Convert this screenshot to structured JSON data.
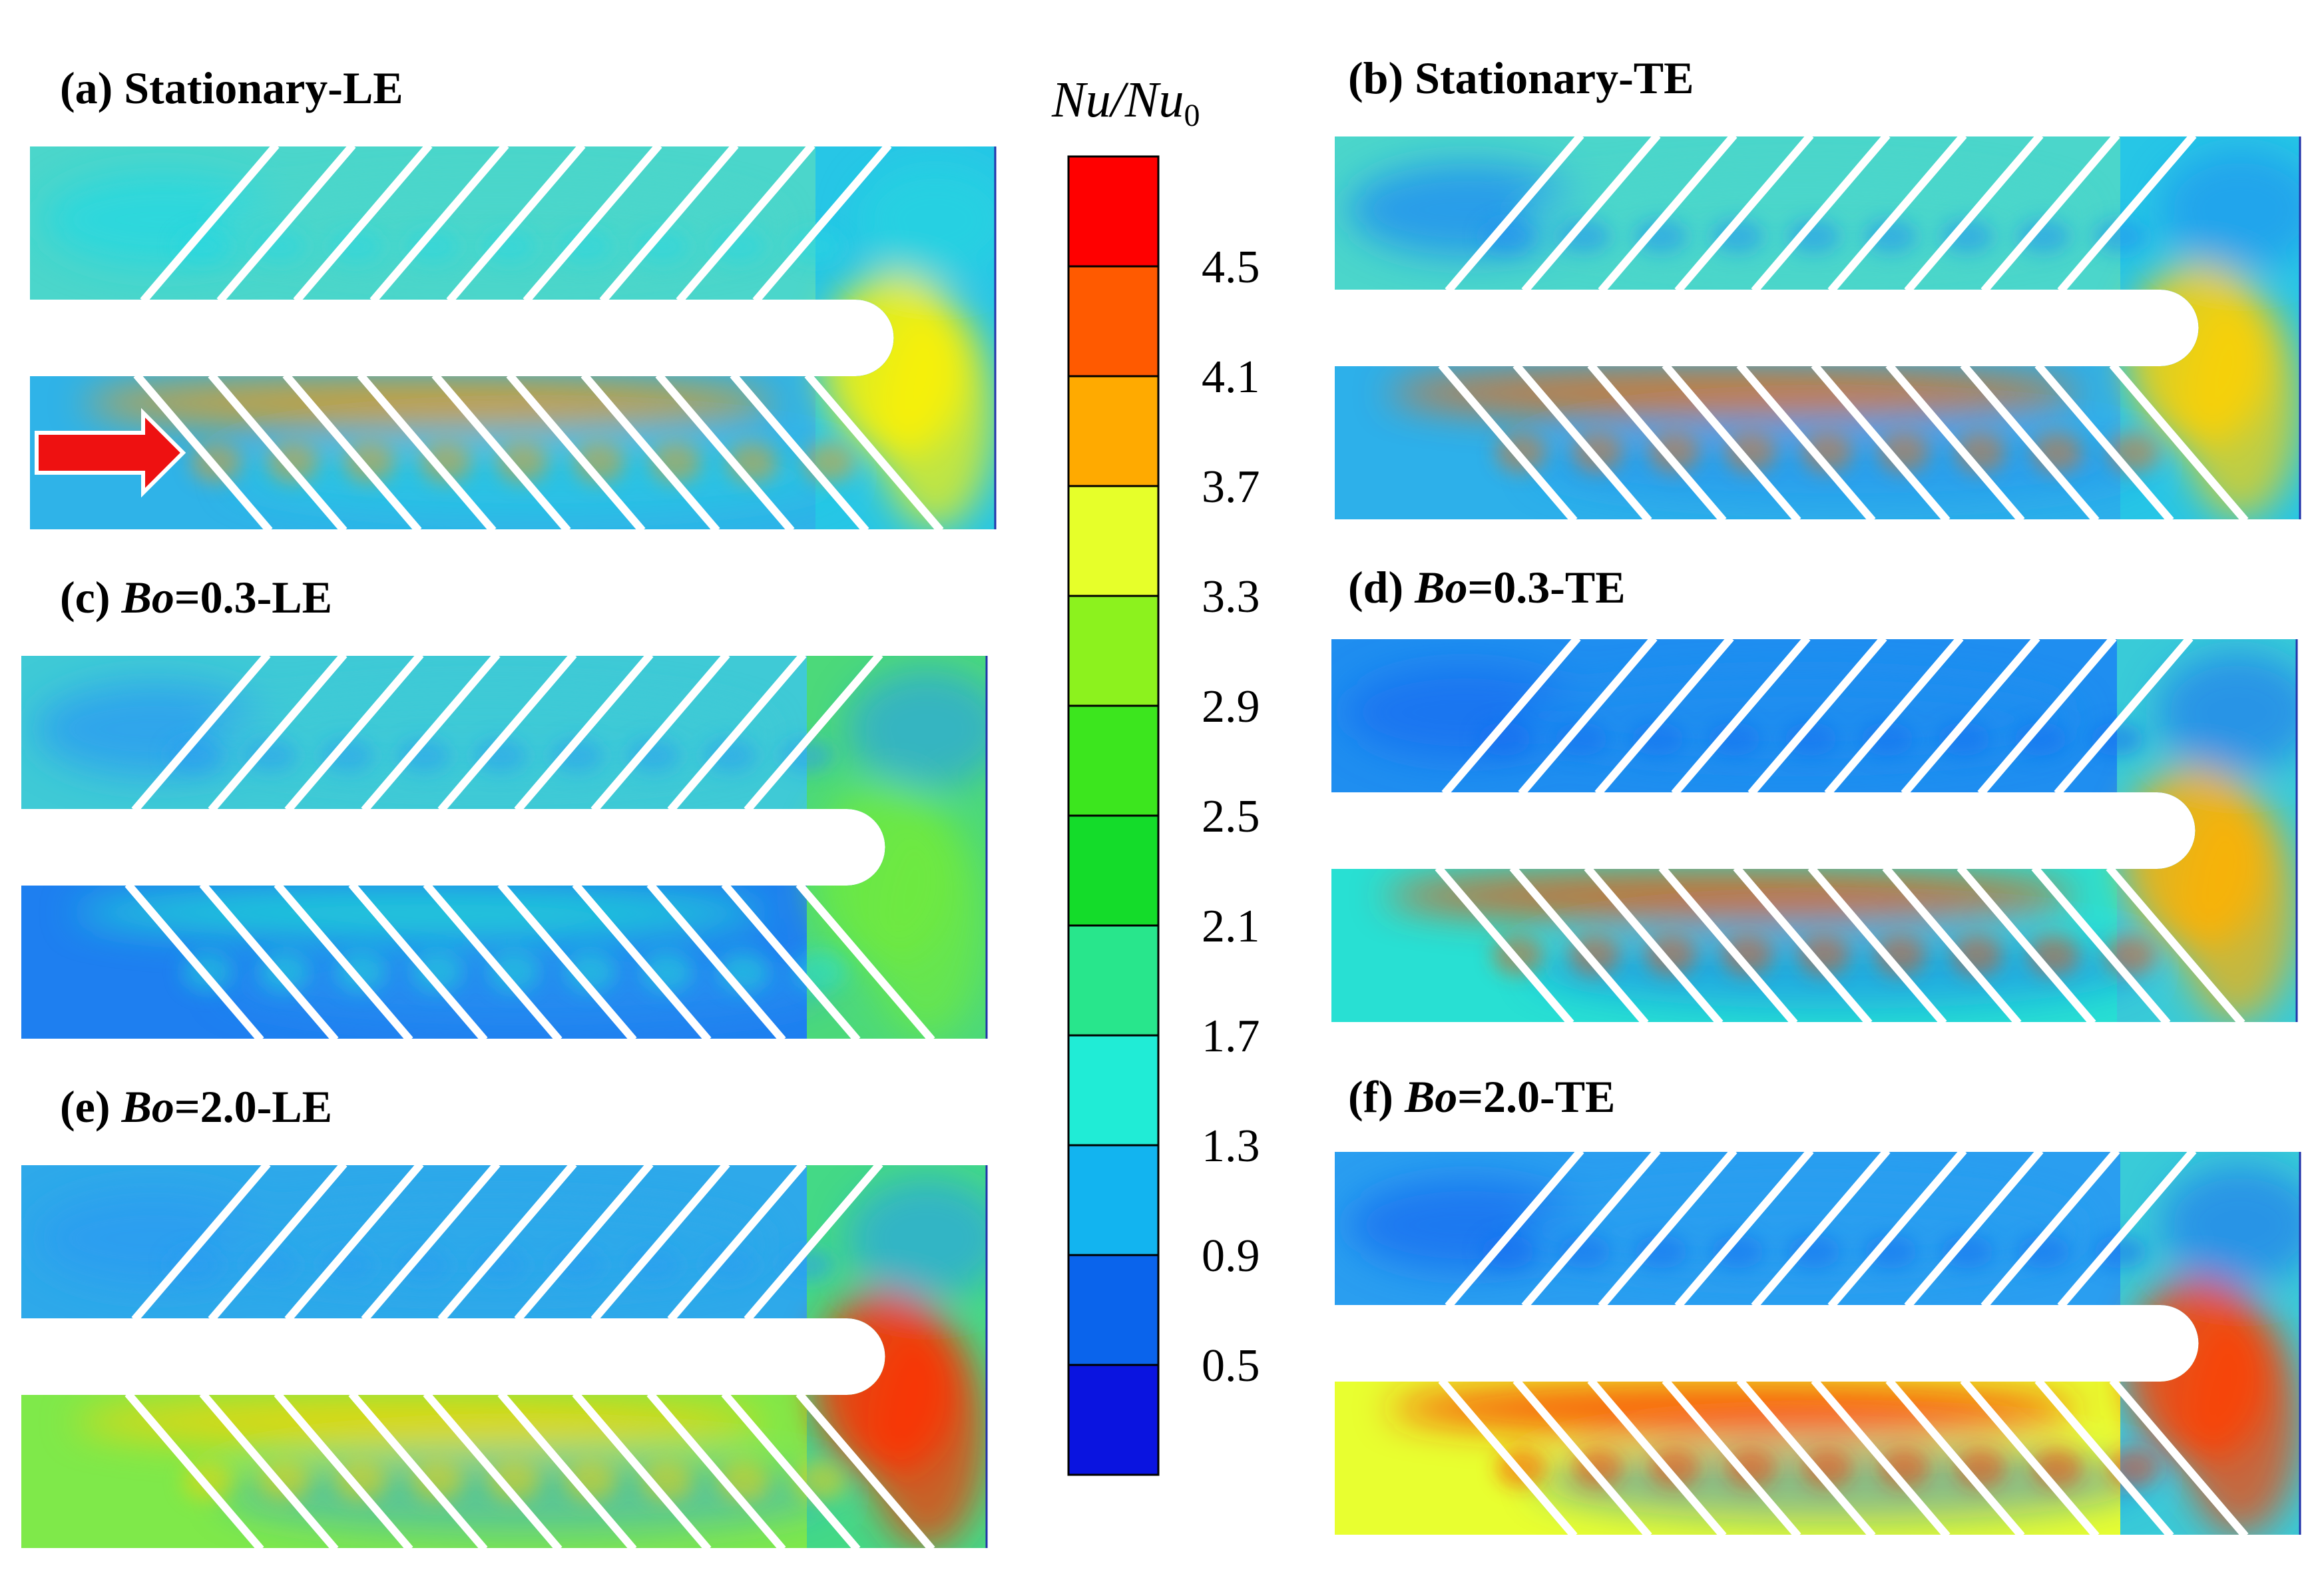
{
  "figure": {
    "colorbar": {
      "title_base": "Nu/Nu",
      "title_sub": "0",
      "ticks": [
        "4.5",
        "4.1",
        "3.7",
        "3.3",
        "2.9",
        "2.5",
        "2.1",
        "1.7",
        "1.3",
        "0.9",
        "0.5"
      ],
      "colors": [
        "#ff0000",
        "#ff5a00",
        "#ffaa00",
        "#e6ff2a",
        "#8cf21e",
        "#3ce61e",
        "#14dc2a",
        "#28e68c",
        "#20ecd6",
        "#12b4f0",
        "#0a64ec",
        "#0a14e0"
      ]
    },
    "panels": [
      {
        "id": "a",
        "prefix": "(a) ",
        "italic": "",
        "suffix": "Stationary-LE",
        "inlet_arrow": true,
        "top_base": "#4bd6cb",
        "bot_base": "#2fb3e8",
        "turn_base": "#27c6e6",
        "hot_bot": "#ff9a00",
        "hot_turn": "#fff200",
        "blob": "#28d7e0"
      },
      {
        "id": "b",
        "prefix": "(b) ",
        "italic": "",
        "suffix": "Stationary-TE",
        "inlet_arrow": false,
        "top_base": "#4bd6cb",
        "bot_base": "#2db0ea",
        "turn_base": "#27c6e6",
        "hot_bot": "#ff6a00",
        "hot_turn": "#ffd000",
        "blob": "#1e8ff0"
      },
      {
        "id": "c",
        "prefix": "(c) ",
        "italic": "Bo",
        "suffix": "=0.3-LE",
        "inlet_arrow": false,
        "top_base": "#3fcad6",
        "bot_base": "#1e7ff0",
        "turn_base": "#4cd97a",
        "hot_bot": "#24e2d0",
        "hot_turn": "#6fea40",
        "blob": "#2a9cf0"
      },
      {
        "id": "d",
        "prefix": "(d) ",
        "italic": "Bo",
        "suffix": "=0.3-TE",
        "inlet_arrow": false,
        "top_base": "#1f8ef0",
        "bot_base": "#28e0d3",
        "turn_base": "#39cbd8",
        "hot_bot": "#ff4a00",
        "hot_turn": "#ffb000",
        "blob": "#1a6ff0"
      },
      {
        "id": "e",
        "prefix": "(e) ",
        "italic": "Bo",
        "suffix": "=2.0-LE",
        "inlet_arrow": false,
        "top_base": "#2ea9ea",
        "bot_base": "#7fe94a",
        "turn_base": "#44d986",
        "hot_bot": "#ffd000",
        "hot_turn": "#ff3000",
        "blob": "#2a9cf0"
      },
      {
        "id": "f",
        "prefix": "(f) ",
        "italic": "Bo",
        "suffix": "=2.0-TE",
        "inlet_arrow": false,
        "top_base": "#2a9ef0",
        "bot_base": "#e8ff30",
        "turn_base": "#39cbd8",
        "hot_bot": "#ff2a00",
        "hot_turn": "#ff4000",
        "blob": "#1a6ff0"
      }
    ]
  }
}
